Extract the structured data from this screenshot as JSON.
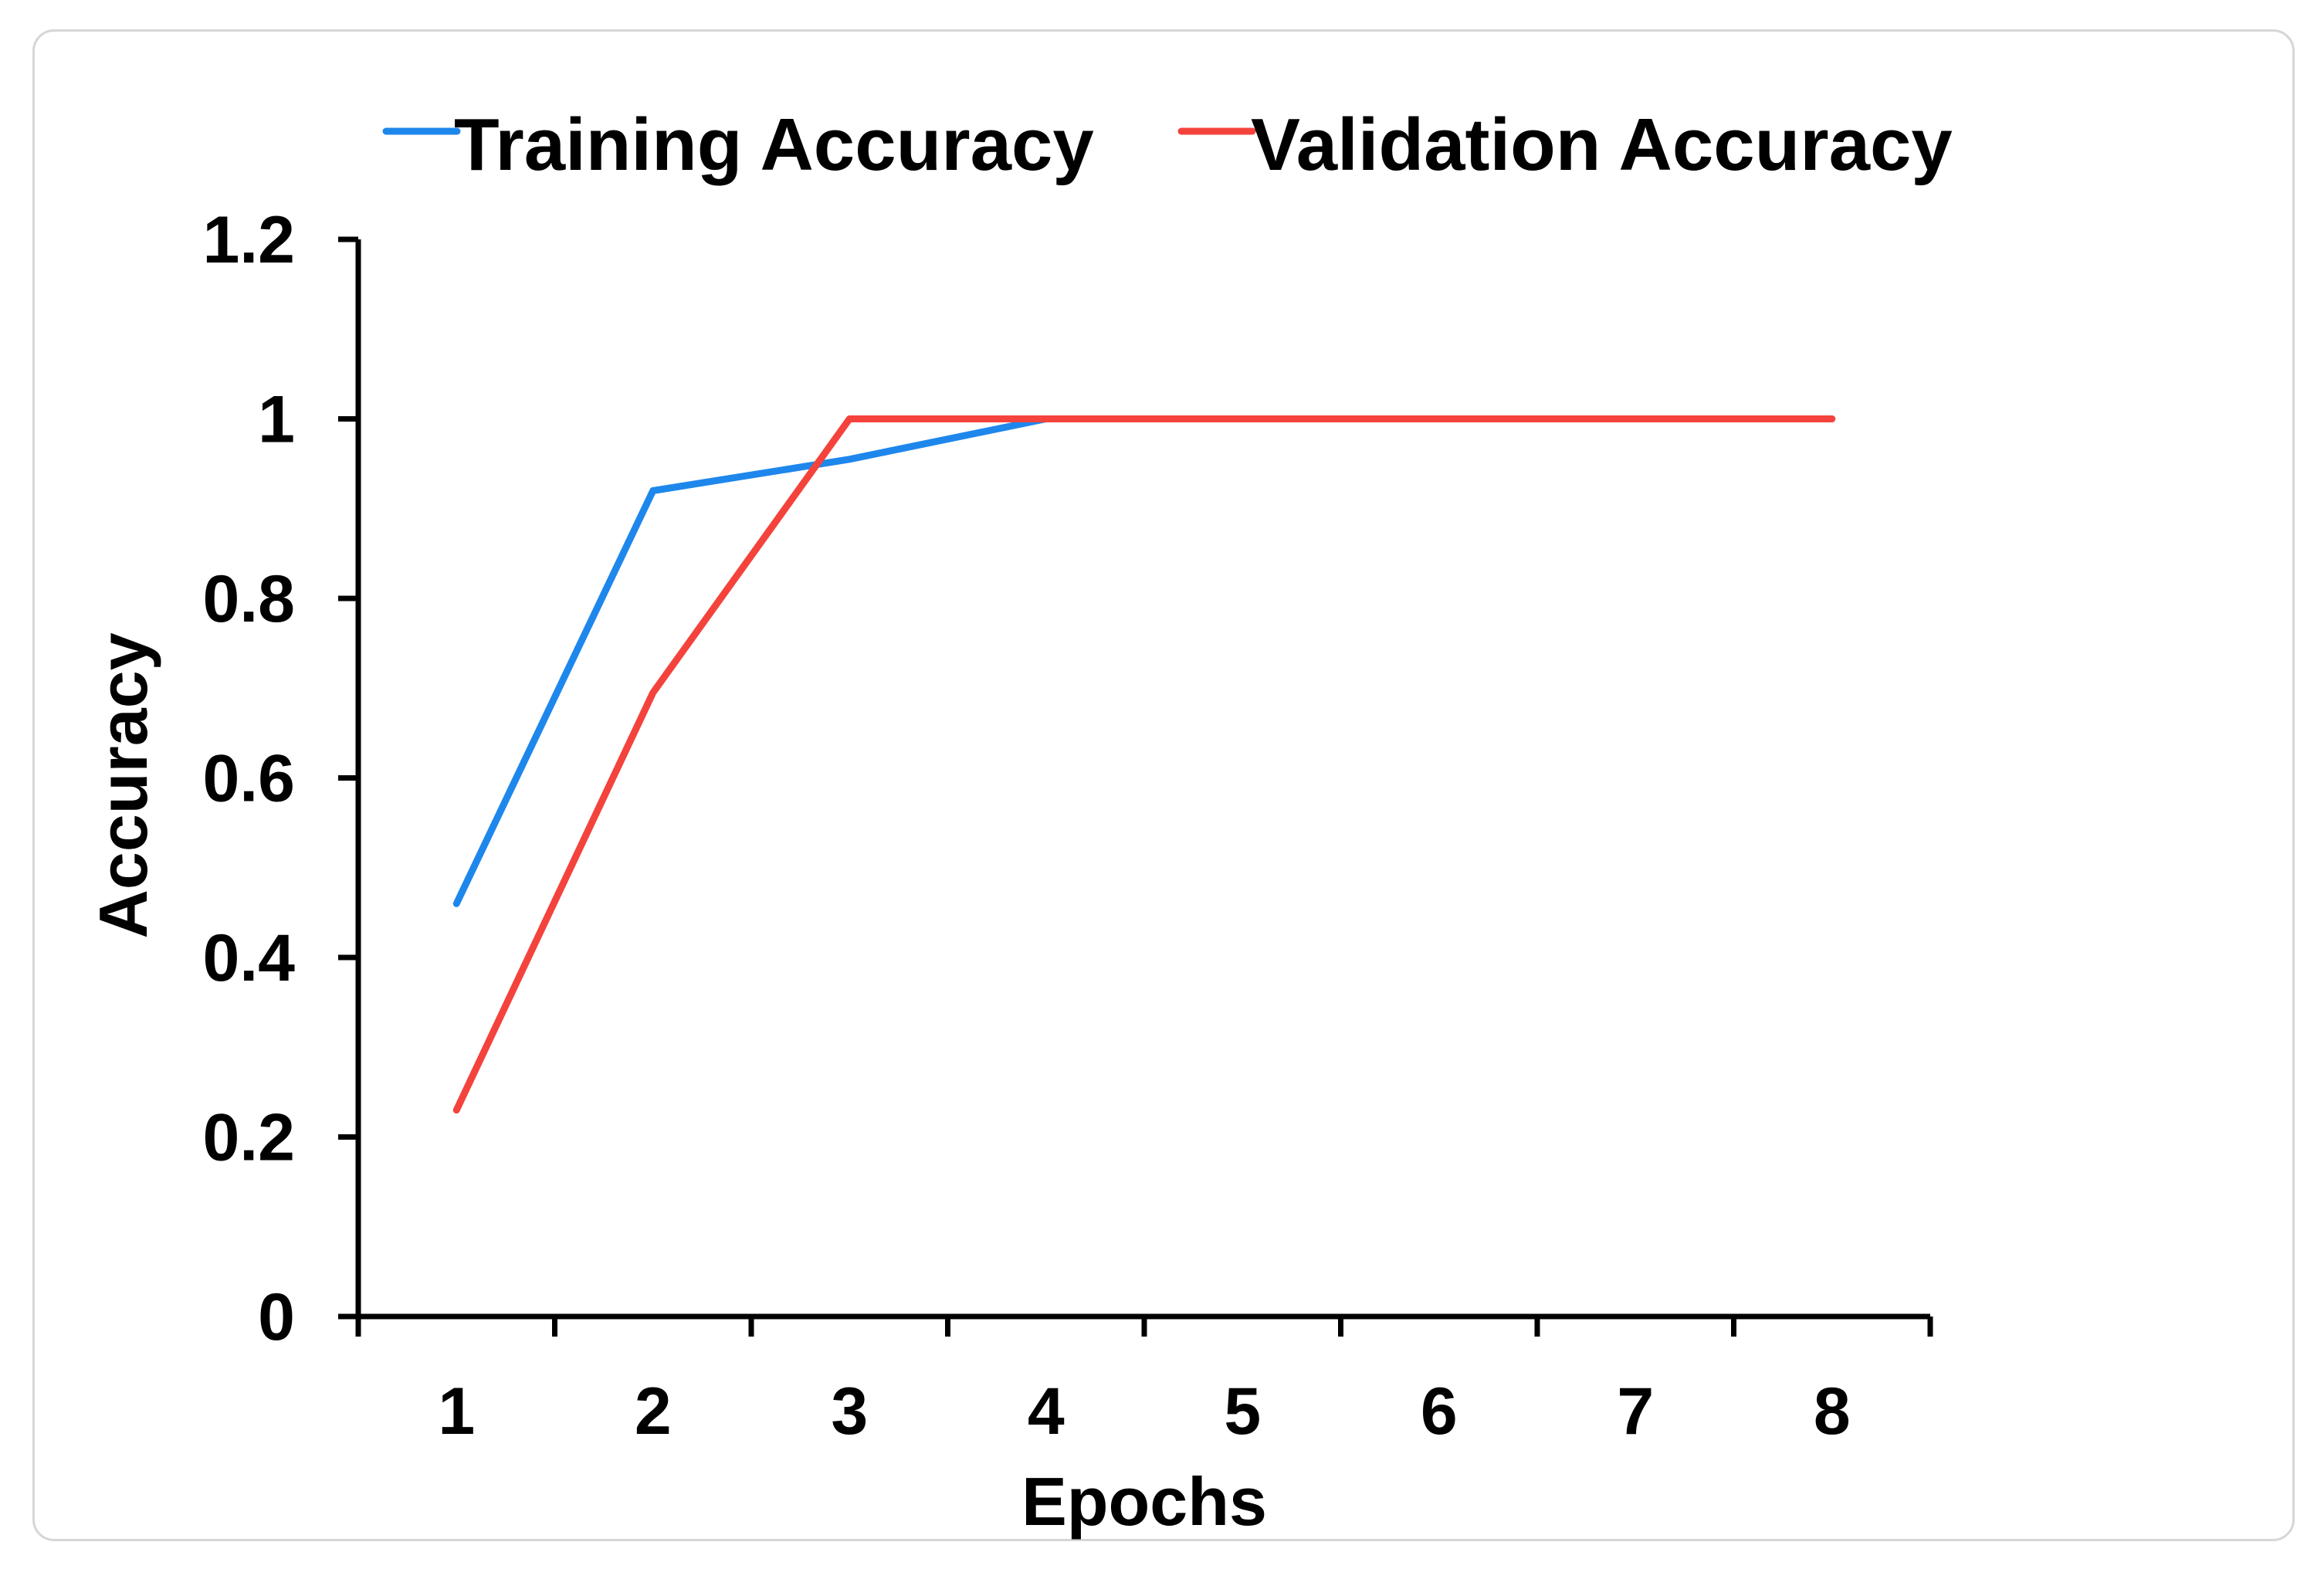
{
  "chart_data": {
    "type": "line",
    "title": "",
    "xlabel": "Epochs",
    "ylabel": "Accuracy",
    "x": [
      1,
      2,
      3,
      4,
      5,
      6,
      7,
      8
    ],
    "x_ticks": [
      "1",
      "2",
      "3",
      "4",
      "5",
      "6",
      "7",
      "8"
    ],
    "y_ticks": [
      "0",
      "0.2",
      "0.4",
      "0.6",
      "0.8",
      "1",
      "1.2"
    ],
    "ylim": [
      0,
      1.2
    ],
    "grid": false,
    "legend_placement": "top",
    "series": [
      {
        "name": "Training Accuracy",
        "color": "#1e87ec",
        "values": [
          0.46,
          0.92,
          0.955,
          1.0,
          1.0,
          1.0,
          1.0,
          1.0
        ]
      },
      {
        "name": "Validation Accuracy",
        "color": "#f4433c",
        "values": [
          0.23,
          0.695,
          1.0,
          1.0,
          1.0,
          1.0,
          1.0,
          1.0
        ]
      }
    ]
  }
}
